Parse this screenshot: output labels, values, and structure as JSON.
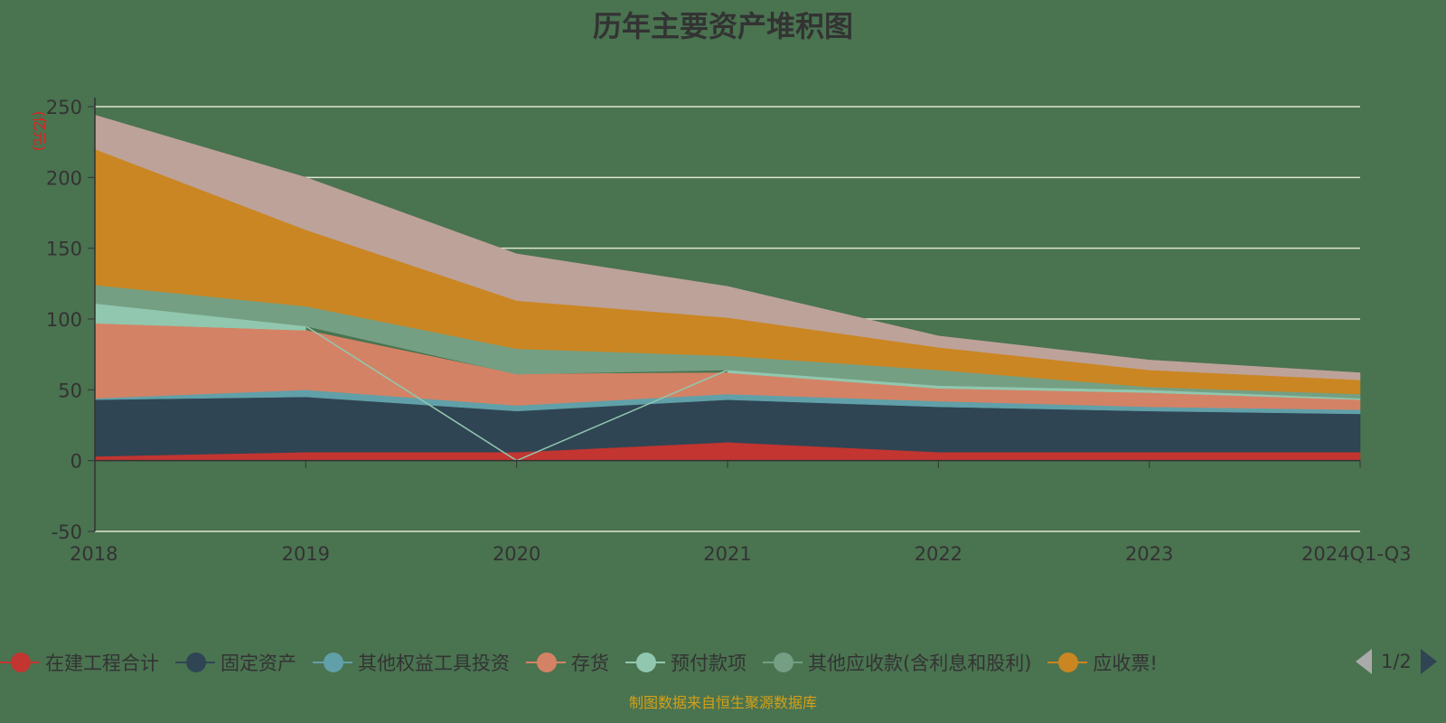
{
  "chart_data": {
    "type": "area",
    "stacked": true,
    "title": "历年主要资产堆积图",
    "ylabel": "(亿元)",
    "xlabel": "",
    "categories": [
      "2018",
      "2019",
      "2020",
      "2021",
      "2022",
      "2023",
      "2024Q1-Q3"
    ],
    "ylim": [
      -50,
      250
    ],
    "yticks": [
      -50,
      0,
      50,
      100,
      150,
      200,
      250
    ],
    "grid": true,
    "legend_position": "bottom",
    "series": [
      {
        "name": "在建工程合计",
        "color": "#c23531",
        "values": [
          3,
          6,
          6,
          13,
          6,
          6,
          6
        ]
      },
      {
        "name": "固定资产",
        "color": "#2f4554",
        "values": [
          40,
          39,
          29,
          30,
          32,
          29,
          27
        ]
      },
      {
        "name": "其他权益工具投资",
        "color": "#61a0a8",
        "values": [
          1,
          5,
          4,
          4,
          4,
          3,
          3
        ]
      },
      {
        "name": "存货",
        "color": "#d48265",
        "values": [
          53,
          42,
          22,
          15,
          9,
          10,
          7
        ]
      },
      {
        "name": "预付款项",
        "color": "#91c7ae",
        "values": [
          14,
          3,
          null,
          2,
          2,
          2,
          1
        ]
      },
      {
        "name": "其他应收款(含利息和股利)",
        "color": "#749f83",
        "values": [
          13,
          14,
          18,
          10,
          11,
          2,
          3
        ]
      },
      {
        "name": "应收票据",
        "color": "#ca8622",
        "values": [
          96,
          54,
          34,
          27,
          16,
          12,
          10
        ]
      },
      {
        "color": "#bda29a",
        "values": [
          24,
          37,
          33,
          22,
          8,
          7,
          5
        ]
      }
    ]
  },
  "legend": {
    "items": [
      "在建工程合计",
      "固定资产",
      "其他权益工具投资",
      "存货",
      "预付款项",
      "其他应收款(含利息和股利)",
      "应收票!"
    ],
    "page": "1/2"
  },
  "source": "制图数据来自恒生聚源数据库"
}
